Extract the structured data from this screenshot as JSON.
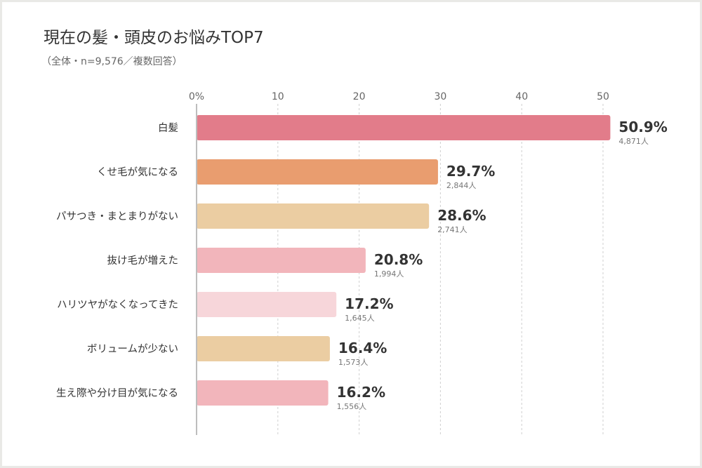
{
  "chart_data": {
    "type": "bar",
    "orientation": "horizontal",
    "title": "現在の髪・頭皮のお悩みTOP7",
    "subtitle": "（全体・n=9,576／複数回答）",
    "categories": [
      "白髪",
      "くせ毛が気になる",
      "パサつき・まとまりがない",
      "抜け毛が増えた",
      "ハリツヤがなくなってきた",
      "ボリュームが少ない",
      "生え際や分け目が気になる"
    ],
    "values": [
      50.9,
      29.7,
      28.6,
      20.8,
      17.2,
      16.4,
      16.2
    ],
    "value_labels": [
      "50.9%",
      "29.7%",
      "28.6%",
      "20.8%",
      "17.2%",
      "16.4%",
      "16.2%"
    ],
    "count_labels": [
      "4,871人",
      "2,844人",
      "2,741人",
      "1,994人",
      "1,645人",
      "1,573人",
      "1,556人"
    ],
    "colors": [
      "#e27c8a",
      "#e99d6f",
      "#ebcda2",
      "#f2b5bb",
      "#f7d6da",
      "#ebcda2",
      "#f2b5bb"
    ],
    "x_ticks": [
      "0%",
      "10",
      "20",
      "30",
      "40",
      "50"
    ],
    "x_tick_values": [
      0,
      10,
      20,
      30,
      40,
      50
    ],
    "xlim": [
      0,
      50.9
    ],
    "grid": true,
    "legend": "none"
  }
}
